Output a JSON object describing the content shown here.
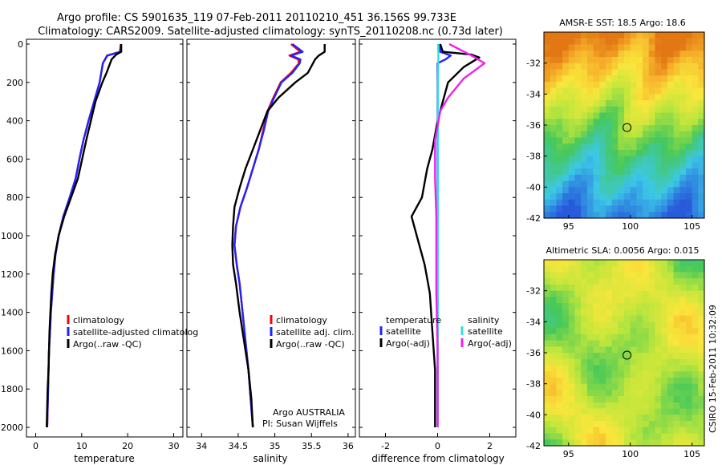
{
  "title_line1": "Argo profile: CS 5901635_119 07-Feb-2011 20110210_451 36.156S 99.733E",
  "title_line2": "Climatology: CARS2009. Satellite-adjusted climatology: synTS_20110208.nc (0.73d later)",
  "side_label": "CSIRO 15-Feb-2011 10:32:09",
  "colors": {
    "red": "#ff0000",
    "blue": "#2222ff",
    "black": "#000000",
    "cyan": "#33dddd",
    "magenta": "#ee22ee",
    "purple": "#8833cc"
  },
  "chart_data": [
    {
      "type": "line",
      "name": "temperature",
      "xlabel": "temperature",
      "xlim": [
        -2,
        32
      ],
      "xticks": [
        0,
        10,
        20,
        30
      ],
      "ylim": [
        0,
        2050
      ],
      "yticks": [
        0,
        200,
        400,
        600,
        800,
        1000,
        1200,
        1400,
        1600,
        1800,
        2000
      ],
      "legend": [
        "climatology",
        "satellite-adjusted climatolog",
        "Argo(..raw -QC)"
      ],
      "series": [
        {
          "name": "climatology",
          "color": "red",
          "points": [
            [
              18.5,
              0
            ],
            [
              18.3,
              40
            ],
            [
              15.5,
              60
            ],
            [
              14.6,
              100
            ],
            [
              13.9,
              200
            ],
            [
              12.7,
              300
            ],
            [
              11.5,
              400
            ],
            [
              10.4,
              500
            ],
            [
              9.5,
              600
            ],
            [
              8.7,
              700
            ],
            [
              7.4,
              800
            ],
            [
              6.0,
              900
            ],
            [
              5.0,
              1000
            ],
            [
              4.3,
              1100
            ],
            [
              3.9,
              1200
            ],
            [
              3.6,
              1300
            ],
            [
              3.3,
              1400
            ],
            [
              3.1,
              1500
            ],
            [
              2.9,
              1600
            ],
            [
              2.8,
              1700
            ],
            [
              2.7,
              1800
            ],
            [
              2.6,
              1900
            ],
            [
              2.5,
              2000
            ]
          ]
        },
        {
          "name": "satellite-adjusted climatology",
          "color": "blue",
          "points": [
            [
              18.6,
              0
            ],
            [
              18.4,
              40
            ],
            [
              15.6,
              60
            ],
            [
              14.6,
              100
            ],
            [
              13.9,
              200
            ],
            [
              12.7,
              300
            ],
            [
              11.5,
              400
            ],
            [
              10.4,
              500
            ],
            [
              9.5,
              600
            ],
            [
              8.7,
              700
            ],
            [
              7.4,
              800
            ],
            [
              6.0,
              900
            ],
            [
              5.0,
              1000
            ],
            [
              4.3,
              1100
            ],
            [
              3.9,
              1200
            ],
            [
              3.6,
              1300
            ],
            [
              3.3,
              1400
            ],
            [
              3.1,
              1500
            ],
            [
              2.9,
              1600
            ],
            [
              2.8,
              1700
            ],
            [
              2.7,
              1800
            ],
            [
              2.6,
              1900
            ],
            [
              2.5,
              2000
            ]
          ]
        },
        {
          "name": "Argo",
          "color": "black",
          "points": [
            [
              18.6,
              0
            ],
            [
              18.6,
              40
            ],
            [
              17.5,
              55
            ],
            [
              16.5,
              80
            ],
            [
              15.4,
              150
            ],
            [
              14.5,
              200
            ],
            [
              13.0,
              300
            ],
            [
              12.0,
              400
            ],
            [
              11.0,
              500
            ],
            [
              10.1,
              600
            ],
            [
              9.2,
              700
            ],
            [
              7.7,
              800
            ],
            [
              6.2,
              900
            ],
            [
              5.0,
              1000
            ],
            [
              4.2,
              1100
            ],
            [
              3.7,
              1200
            ],
            [
              3.4,
              1300
            ],
            [
              3.2,
              1400
            ],
            [
              3.0,
              1500
            ],
            [
              2.9,
              1600
            ],
            [
              2.8,
              1700
            ],
            [
              2.6,
              1800
            ],
            [
              2.5,
              1900
            ],
            [
              2.4,
              2000
            ]
          ]
        }
      ]
    },
    {
      "type": "line",
      "name": "salinity",
      "xlabel": "salinity",
      "xlim": [
        33.8,
        36.1
      ],
      "xticks": [
        34,
        34.5,
        35,
        35.5,
        36
      ],
      "xtick_labels": [
        "34",
        "34.5",
        "35",
        "35.5",
        "36"
      ],
      "ylim": [
        0,
        2050
      ],
      "legend": [
        "climatology",
        "satellite adj. clim.",
        "Argo(..raw -QC)"
      ],
      "annotation": [
        "Argo AUSTRALIA",
        "PI: Susan Wijffels"
      ],
      "series": [
        {
          "name": "climatology",
          "color": "red",
          "points": [
            [
              35.22,
              0
            ],
            [
              35.35,
              40
            ],
            [
              35.2,
              60
            ],
            [
              35.32,
              80
            ],
            [
              35.33,
              100
            ],
            [
              35.22,
              150
            ],
            [
              35.08,
              200
            ],
            [
              34.98,
              280
            ],
            [
              34.9,
              350
            ],
            [
              34.84,
              450
            ],
            [
              34.78,
              550
            ],
            [
              34.7,
              650
            ],
            [
              34.62,
              750
            ],
            [
              34.53,
              850
            ],
            [
              34.47,
              950
            ],
            [
              34.45,
              1050
            ],
            [
              34.48,
              1150
            ],
            [
              34.52,
              1250
            ],
            [
              34.56,
              1400
            ],
            [
              34.6,
              1550
            ],
            [
              34.64,
              1700
            ],
            [
              34.67,
              1850
            ],
            [
              34.7,
              2000
            ]
          ]
        },
        {
          "name": "satellite-adjusted climatology",
          "color": "blue",
          "points": [
            [
              35.24,
              0
            ],
            [
              35.38,
              40
            ],
            [
              35.22,
              60
            ],
            [
              35.35,
              80
            ],
            [
              35.34,
              100
            ],
            [
              35.24,
              150
            ],
            [
              35.09,
              200
            ],
            [
              34.99,
              280
            ],
            [
              34.91,
              350
            ],
            [
              34.85,
              450
            ],
            [
              34.78,
              550
            ],
            [
              34.7,
              650
            ],
            [
              34.62,
              750
            ],
            [
              34.53,
              850
            ],
            [
              34.47,
              950
            ],
            [
              34.45,
              1050
            ],
            [
              34.48,
              1150
            ],
            [
              34.52,
              1250
            ],
            [
              34.56,
              1400
            ],
            [
              34.6,
              1550
            ],
            [
              34.64,
              1700
            ],
            [
              34.67,
              1850
            ],
            [
              34.7,
              2000
            ]
          ]
        },
        {
          "name": "Argo",
          "color": "black",
          "points": [
            [
              35.68,
              0
            ],
            [
              35.68,
              40
            ],
            [
              35.6,
              60
            ],
            [
              35.55,
              80
            ],
            [
              35.45,
              150
            ],
            [
              35.28,
              200
            ],
            [
              35.05,
              280
            ],
            [
              34.9,
              350
            ],
            [
              34.8,
              450
            ],
            [
              34.7,
              550
            ],
            [
              34.6,
              650
            ],
            [
              34.52,
              750
            ],
            [
              34.45,
              850
            ],
            [
              34.43,
              950
            ],
            [
              34.42,
              1050
            ],
            [
              34.43,
              1150
            ],
            [
              34.47,
              1250
            ],
            [
              34.52,
              1400
            ],
            [
              34.58,
              1550
            ],
            [
              34.64,
              1700
            ],
            [
              34.68,
              1850
            ],
            [
              34.7,
              2000
            ]
          ]
        }
      ]
    },
    {
      "type": "line",
      "name": "difference",
      "xlabel": "difference from climatology",
      "xlim": [
        -3,
        3
      ],
      "xticks": [
        -2,
        0,
        2
      ],
      "ylim": [
        0,
        2050
      ],
      "legend_left_title": "temperature",
      "legend_right_title": "salinity",
      "legend": [
        "satellite",
        "Argo(-adj)",
        "satellite",
        "Argo(-adj)"
      ],
      "series": [
        {
          "name": "temperature satellite",
          "color": "blue",
          "points": [
            [
              0.1,
              0
            ],
            [
              0.1,
              40
            ],
            [
              0.5,
              60
            ],
            [
              0.3,
              80
            ],
            [
              0.0,
              100
            ],
            [
              0.0,
              2000
            ]
          ]
        },
        {
          "name": "temperature Argo",
          "color": "black",
          "points": [
            [
              0.1,
              0
            ],
            [
              0.2,
              40
            ],
            [
              1.3,
              55
            ],
            [
              1.6,
              70
            ],
            [
              1.0,
              120
            ],
            [
              0.4,
              200
            ],
            [
              0.2,
              300
            ],
            [
              0.0,
              400
            ],
            [
              -0.2,
              550
            ],
            [
              -0.4,
              650
            ],
            [
              -0.6,
              800
            ],
            [
              -1.0,
              900
            ],
            [
              -0.8,
              1000
            ],
            [
              -0.5,
              1150
            ],
            [
              -0.3,
              1300
            ],
            [
              -0.2,
              1500
            ],
            [
              -0.1,
              1700
            ],
            [
              -0.1,
              2000
            ]
          ]
        },
        {
          "name": "salinity satellite",
          "color": "cyan",
          "points": [
            [
              0.02,
              0
            ],
            [
              0.03,
              60
            ],
            [
              0.01,
              200
            ],
            [
              0.01,
              500
            ],
            [
              0.0,
              2000
            ]
          ]
        },
        {
          "name": "salinity Argo",
          "color": "magenta",
          "points": [
            [
              0.45,
              0
            ],
            [
              1.3,
              60
            ],
            [
              1.8,
              100
            ],
            [
              1.0,
              180
            ],
            [
              0.4,
              280
            ],
            [
              0.1,
              350
            ],
            [
              -0.1,
              500
            ],
            [
              -0.1,
              700
            ],
            [
              -0.05,
              900
            ],
            [
              -0.05,
              1050
            ],
            [
              -0.05,
              1300
            ],
            [
              0.0,
              1600
            ],
            [
              0.0,
              2000
            ]
          ]
        }
      ]
    },
    {
      "type": "heatmap",
      "name": "sst-map",
      "title": "AMSR-E SST: 18.5 Argo: 18.6",
      "xlim": [
        93,
        106
      ],
      "ylim": [
        -42,
        -30
      ],
      "xticks": [
        95,
        100,
        105
      ],
      "yticks": [
        -32,
        -34,
        -36,
        -38,
        -40,
        -42
      ],
      "marker": [
        99.733,
        -36.156
      ]
    },
    {
      "type": "heatmap",
      "name": "sla-map",
      "title": "Altimetric SLA: 0.0056 Argo: 0.015",
      "xlim": [
        93,
        106
      ],
      "ylim": [
        -42,
        -30
      ],
      "xticks": [
        95,
        100,
        105
      ],
      "yticks": [
        -32,
        -34,
        -36,
        -38,
        -40,
        -42
      ],
      "marker": [
        99.733,
        -36.156
      ]
    }
  ]
}
